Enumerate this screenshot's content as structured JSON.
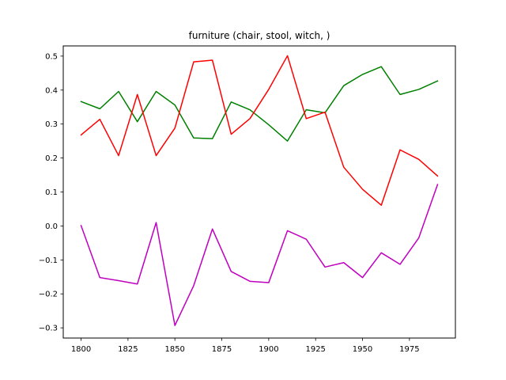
{
  "chart_data": {
    "type": "line",
    "title": "furniture (chair, stool, witch, )",
    "xlabel": "",
    "ylabel": "",
    "xlim": [
      1790.5,
      1999.5
    ],
    "ylim": [
      -0.33,
      0.53
    ],
    "x_ticks": [
      1800,
      1825,
      1850,
      1875,
      1900,
      1925,
      1950,
      1975
    ],
    "x_tick_labels": [
      "1800",
      "1825",
      "1850",
      "1875",
      "1900",
      "1925",
      "1950",
      "1975"
    ],
    "y_ticks": [
      -0.3,
      -0.2,
      -0.1,
      0.0,
      0.1,
      0.2,
      0.3,
      0.4,
      0.5
    ],
    "y_tick_labels": [
      "−0.3",
      "−0.2",
      "−0.1",
      "0.0",
      "0.1",
      "0.2",
      "0.3",
      "0.4",
      "0.5"
    ],
    "grid": false,
    "legend": "none",
    "x": [
      1800,
      1810,
      1820,
      1830,
      1840,
      1850,
      1860,
      1870,
      1880,
      1890,
      1900,
      1910,
      1920,
      1930,
      1940,
      1950,
      1960,
      1970,
      1980,
      1990
    ],
    "series": [
      {
        "color": "#008000",
        "values": [
          0.366,
          0.345,
          0.396,
          0.307,
          0.396,
          0.356,
          0.259,
          0.257,
          0.365,
          0.342,
          0.298,
          0.25,
          0.342,
          0.333,
          0.413,
          0.446,
          0.469,
          0.387,
          0.402,
          0.427
        ]
      },
      {
        "color": "#ff0000",
        "values": [
          0.268,
          0.314,
          0.207,
          0.387,
          0.207,
          0.288,
          0.483,
          0.488,
          0.27,
          0.316,
          0.402,
          0.501,
          0.316,
          0.335,
          0.173,
          0.108,
          0.061,
          0.224,
          0.196,
          0.147
        ]
      },
      {
        "color": "#bf00bf",
        "values": [
          0.001,
          -0.152,
          -0.161,
          -0.171,
          0.01,
          -0.293,
          -0.176,
          -0.009,
          -0.134,
          -0.163,
          -0.167,
          -0.014,
          -0.039,
          -0.121,
          -0.108,
          -0.152,
          -0.079,
          -0.113,
          -0.035,
          0.122
        ]
      }
    ]
  }
}
